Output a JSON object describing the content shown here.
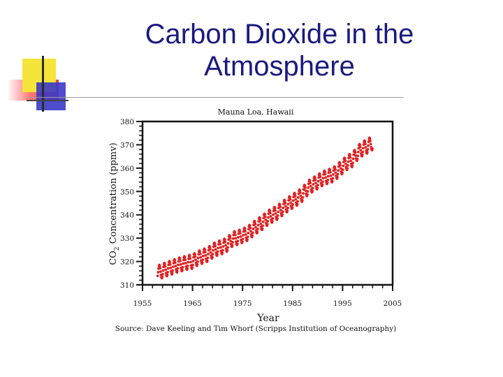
{
  "slide": {
    "title_line1": "Carbon Dioxide in the",
    "title_line2": "Atmosphere"
  },
  "chart_data": {
    "type": "scatter",
    "title": "Mauna Loa, Hawaii",
    "xlabel": "Year",
    "ylabel": "CO2 Concentration (ppmv)",
    "ylabel_parts": {
      "pre": "CO",
      "sub": "2",
      "post": " Concentration (ppmv)"
    },
    "source": "Source: Dave Keeling and Tim Whorf (Scripps Institution of Oceanography)",
    "xlim": [
      1955,
      2005
    ],
    "ylim": [
      310,
      380
    ],
    "xticks": [
      1955,
      1965,
      1975,
      1985,
      1995,
      2005
    ],
    "yticks": [
      310,
      320,
      330,
      340,
      350,
      360,
      370,
      380
    ],
    "series": [
      {
        "color": "#e02020",
        "seasonal_amplitude": 3,
        "annual_mean": [
          [
            1958,
            315.3
          ],
          [
            1959,
            316.0
          ],
          [
            1960,
            316.9
          ],
          [
            1961,
            317.6
          ],
          [
            1962,
            318.5
          ],
          [
            1963,
            319.0
          ],
          [
            1964,
            319.6
          ],
          [
            1965,
            320.0
          ],
          [
            1966,
            321.4
          ],
          [
            1967,
            322.2
          ],
          [
            1968,
            323.0
          ],
          [
            1969,
            324.6
          ],
          [
            1970,
            325.7
          ],
          [
            1971,
            326.3
          ],
          [
            1972,
            327.5
          ],
          [
            1973,
            329.7
          ],
          [
            1974,
            330.2
          ],
          [
            1975,
            331.1
          ],
          [
            1976,
            332.0
          ],
          [
            1977,
            333.8
          ],
          [
            1978,
            335.4
          ],
          [
            1979,
            336.8
          ],
          [
            1980,
            338.7
          ],
          [
            1981,
            339.9
          ],
          [
            1982,
            341.1
          ],
          [
            1983,
            342.8
          ],
          [
            1984,
            344.4
          ],
          [
            1985,
            345.9
          ],
          [
            1986,
            347.2
          ],
          [
            1987,
            348.9
          ],
          [
            1988,
            351.5
          ],
          [
            1989,
            352.9
          ],
          [
            1990,
            354.2
          ],
          [
            1991,
            355.6
          ],
          [
            1992,
            356.4
          ],
          [
            1993,
            357.1
          ],
          [
            1994,
            358.8
          ],
          [
            1995,
            360.8
          ],
          [
            1996,
            362.6
          ],
          [
            1997,
            363.7
          ],
          [
            1998,
            366.7
          ],
          [
            1999,
            368.4
          ],
          [
            2000,
            369.5
          ]
        ]
      }
    ]
  }
}
